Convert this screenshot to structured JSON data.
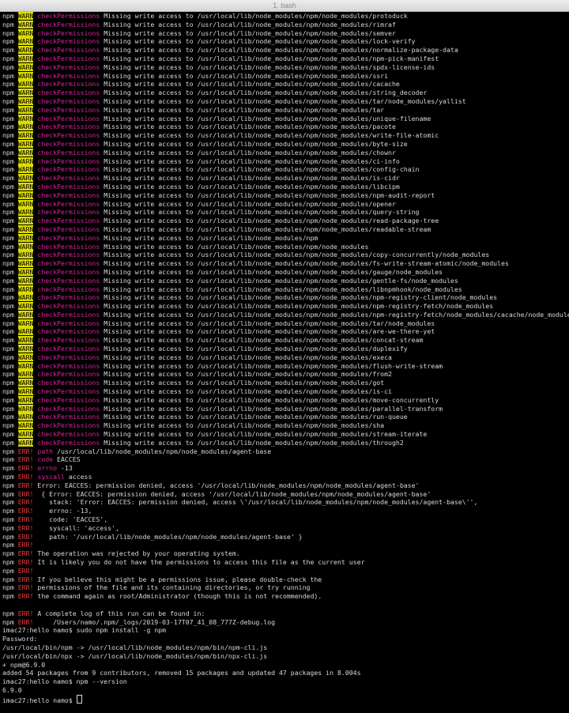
{
  "window": {
    "title": "1. bash"
  },
  "colors": {
    "warn_bg": "#dcdc00",
    "err": "#ee3b3b",
    "keyword": "#d6269b",
    "text": "#d8d8d8",
    "bg": "#000000"
  },
  "lines": [
    {
      "t": "w",
      "c": "checkPermissions",
      "m": "Missing write access to /usr/local/lib/node_modules/npm/node_modules/protoduck"
    },
    {
      "t": "w",
      "c": "checkPermissions",
      "m": "Missing write access to /usr/local/lib/node_modules/npm/node_modules/rimraf"
    },
    {
      "t": "w",
      "c": "checkPermissions",
      "m": "Missing write access to /usr/local/lib/node_modules/npm/node_modules/semver"
    },
    {
      "t": "w",
      "c": "checkPermissions",
      "m": "Missing write access to /usr/local/lib/node_modules/npm/node_modules/lock-verify"
    },
    {
      "t": "w",
      "c": "checkPermissions",
      "m": "Missing write access to /usr/local/lib/node_modules/npm/node_modules/normalize-package-data"
    },
    {
      "t": "w",
      "c": "checkPermissions",
      "m": "Missing write access to /usr/local/lib/node_modules/npm/node_modules/npm-pick-manifest"
    },
    {
      "t": "w",
      "c": "checkPermissions",
      "m": "Missing write access to /usr/local/lib/node_modules/npm/node_modules/spdx-license-ids"
    },
    {
      "t": "w",
      "c": "checkPermissions",
      "m": "Missing write access to /usr/local/lib/node_modules/npm/node_modules/ssri"
    },
    {
      "t": "w",
      "c": "checkPermissions",
      "m": "Missing write access to /usr/local/lib/node_modules/npm/node_modules/cacache"
    },
    {
      "t": "w",
      "c": "checkPermissions",
      "m": "Missing write access to /usr/local/lib/node_modules/npm/node_modules/string_decoder"
    },
    {
      "t": "w",
      "c": "checkPermissions",
      "m": "Missing write access to /usr/local/lib/node_modules/npm/node_modules/tar/node_modules/yallist"
    },
    {
      "t": "w",
      "c": "checkPermissions",
      "m": "Missing write access to /usr/local/lib/node_modules/npm/node_modules/tar"
    },
    {
      "t": "w",
      "c": "checkPermissions",
      "m": "Missing write access to /usr/local/lib/node_modules/npm/node_modules/unique-filename"
    },
    {
      "t": "w",
      "c": "checkPermissions",
      "m": "Missing write access to /usr/local/lib/node_modules/npm/node_modules/pacote"
    },
    {
      "t": "w",
      "c": "checkPermissions",
      "m": "Missing write access to /usr/local/lib/node_modules/npm/node_modules/write-file-atomic"
    },
    {
      "t": "w",
      "c": "checkPermissions",
      "m": "Missing write access to /usr/local/lib/node_modules/npm/node_modules/byte-size"
    },
    {
      "t": "w",
      "c": "checkPermissions",
      "m": "Missing write access to /usr/local/lib/node_modules/npm/node_modules/chownr"
    },
    {
      "t": "w",
      "c": "checkPermissions",
      "m": "Missing write access to /usr/local/lib/node_modules/npm/node_modules/ci-info"
    },
    {
      "t": "w",
      "c": "checkPermissions",
      "m": "Missing write access to /usr/local/lib/node_modules/npm/node_modules/config-chain"
    },
    {
      "t": "w",
      "c": "checkPermissions",
      "m": "Missing write access to /usr/local/lib/node_modules/npm/node_modules/is-cidr"
    },
    {
      "t": "w",
      "c": "checkPermissions",
      "m": "Missing write access to /usr/local/lib/node_modules/npm/node_modules/libcipm"
    },
    {
      "t": "w",
      "c": "checkPermissions",
      "m": "Missing write access to /usr/local/lib/node_modules/npm/node_modules/npm-audit-report"
    },
    {
      "t": "w",
      "c": "checkPermissions",
      "m": "Missing write access to /usr/local/lib/node_modules/npm/node_modules/opener"
    },
    {
      "t": "w",
      "c": "checkPermissions",
      "m": "Missing write access to /usr/local/lib/node_modules/npm/node_modules/query-string"
    },
    {
      "t": "w",
      "c": "checkPermissions",
      "m": "Missing write access to /usr/local/lib/node_modules/npm/node_modules/read-package-tree"
    },
    {
      "t": "w",
      "c": "checkPermissions",
      "m": "Missing write access to /usr/local/lib/node_modules/npm/node_modules/readable-stream"
    },
    {
      "t": "w",
      "c": "checkPermissions",
      "m": "Missing write access to /usr/local/lib/node_modules/npm"
    },
    {
      "t": "w",
      "c": "checkPermissions",
      "m": "Missing write access to /usr/local/lib/node_modules/npm/node_modules"
    },
    {
      "t": "w",
      "c": "checkPermissions",
      "m": "Missing write access to /usr/local/lib/node_modules/npm/node_modules/copy-concurrently/node_modules"
    },
    {
      "t": "w",
      "c": "checkPermissions",
      "m": "Missing write access to /usr/local/lib/node_modules/npm/node_modules/fs-write-stream-atomic/node_modules"
    },
    {
      "t": "w",
      "c": "checkPermissions",
      "m": "Missing write access to /usr/local/lib/node_modules/npm/node_modules/gauge/node_modules"
    },
    {
      "t": "w",
      "c": "checkPermissions",
      "m": "Missing write access to /usr/local/lib/node_modules/npm/node_modules/gentle-fs/node_modules"
    },
    {
      "t": "w",
      "c": "checkPermissions",
      "m": "Missing write access to /usr/local/lib/node_modules/npm/node_modules/libnpmhook/node_modules"
    },
    {
      "t": "w",
      "c": "checkPermissions",
      "m": "Missing write access to /usr/local/lib/node_modules/npm/node_modules/npm-registry-client/node_modules"
    },
    {
      "t": "w",
      "c": "checkPermissions",
      "m": "Missing write access to /usr/local/lib/node_modules/npm/node_modules/npm-registry-fetch/node_modules"
    },
    {
      "t": "w",
      "c": "checkPermissions",
      "m": "Missing write access to /usr/local/lib/node_modules/npm/node_modules/npm-registry-fetch/node_modules/cacache/node_modules"
    },
    {
      "t": "w",
      "c": "checkPermissions",
      "m": "Missing write access to /usr/local/lib/node_modules/npm/node_modules/tar/node_modules"
    },
    {
      "t": "w",
      "c": "checkPermissions",
      "m": "Missing write access to /usr/local/lib/node_modules/npm/node_modules/are-we-there-yet"
    },
    {
      "t": "w",
      "c": "checkPermissions",
      "m": "Missing write access to /usr/local/lib/node_modules/npm/node_modules/concat-stream"
    },
    {
      "t": "w",
      "c": "checkPermissions",
      "m": "Missing write access to /usr/local/lib/node_modules/npm/node_modules/duplexify"
    },
    {
      "t": "w",
      "c": "checkPermissions",
      "m": "Missing write access to /usr/local/lib/node_modules/npm/node_modules/execa"
    },
    {
      "t": "w",
      "c": "checkPermissions",
      "m": "Missing write access to /usr/local/lib/node_modules/npm/node_modules/flush-write-stream"
    },
    {
      "t": "w",
      "c": "checkPermissions",
      "m": "Missing write access to /usr/local/lib/node_modules/npm/node_modules/from2"
    },
    {
      "t": "w",
      "c": "checkPermissions",
      "m": "Missing write access to /usr/local/lib/node_modules/npm/node_modules/got"
    },
    {
      "t": "w",
      "c": "checkPermissions",
      "m": "Missing write access to /usr/local/lib/node_modules/npm/node_modules/is-ci"
    },
    {
      "t": "w",
      "c": "checkPermissions",
      "m": "Missing write access to /usr/local/lib/node_modules/npm/node_modules/move-concurrently"
    },
    {
      "t": "w",
      "c": "checkPermissions",
      "m": "Missing write access to /usr/local/lib/node_modules/npm/node_modules/parallel-transform"
    },
    {
      "t": "w",
      "c": "checkPermissions",
      "m": "Missing write access to /usr/local/lib/node_modules/npm/node_modules/run-queue"
    },
    {
      "t": "w",
      "c": "checkPermissions",
      "m": "Missing write access to /usr/local/lib/node_modules/npm/node_modules/sha"
    },
    {
      "t": "w",
      "c": "checkPermissions",
      "m": "Missing write access to /usr/local/lib/node_modules/npm/node_modules/stream-iterate"
    },
    {
      "t": "w",
      "c": "checkPermissions",
      "m": "Missing write access to /usr/local/lib/node_modules/npm/node_modules/through2"
    },
    {
      "t": "e",
      "c": "path",
      "m": "/usr/local/lib/node_modules/npm/node_modules/agent-base"
    },
    {
      "t": "e",
      "c": "code",
      "m": "EACCES"
    },
    {
      "t": "e",
      "c": "errno",
      "m": "-13"
    },
    {
      "t": "e",
      "c": "syscall",
      "m": "access"
    },
    {
      "t": "e",
      "c": "",
      "m": "Error: EACCES: permission denied, access '/usr/local/lib/node_modules/npm/node_modules/agent-base'"
    },
    {
      "t": "e",
      "c": "",
      "m": " { Error: EACCES: permission denied, access '/usr/local/lib/node_modules/npm/node_modules/agent-base'"
    },
    {
      "t": "e",
      "c": "",
      "m": "   stack: 'Error: EACCES: permission denied, access \\'/usr/local/lib/node_modules/npm/node_modules/agent-base\\'',"
    },
    {
      "t": "e",
      "c": "",
      "m": "   errno: -13,"
    },
    {
      "t": "e",
      "c": "",
      "m": "   code: 'EACCES',"
    },
    {
      "t": "e",
      "c": "",
      "m": "   syscall: 'access',"
    },
    {
      "t": "e",
      "c": "",
      "m": "   path: '/usr/local/lib/node_modules/npm/node_modules/agent-base' }"
    },
    {
      "t": "e",
      "c": "",
      "m": ""
    },
    {
      "t": "e",
      "c": "",
      "m": "The operation was rejected by your operating system."
    },
    {
      "t": "e",
      "c": "",
      "m": "It is likely you do not have the permissions to access this file as the current user"
    },
    {
      "t": "e",
      "c": "",
      "m": ""
    },
    {
      "t": "e",
      "c": "",
      "m": "If you believe this might be a permissions issue, please double-check the"
    },
    {
      "t": "e",
      "c": "",
      "m": "permissions of the file and its containing directories, or try running"
    },
    {
      "t": "e",
      "c": "",
      "m": "the command again as root/Administrator (though this is not recommended)."
    },
    {
      "t": "p",
      "m": ""
    },
    {
      "t": "e",
      "c": "",
      "m": "A complete log of this run can be found in:"
    },
    {
      "t": "e",
      "c": "",
      "m": "    /Users/namo/.npm/_logs/2019-03-17T07_41_08_777Z-debug.log"
    },
    {
      "t": "p",
      "m": "imac27:hello namo$ sudo npm install -g npm"
    },
    {
      "t": "p",
      "m": "Password:"
    },
    {
      "t": "p",
      "m": "/usr/local/bin/npm -> /usr/local/lib/node_modules/npm/bin/npm-cli.js"
    },
    {
      "t": "p",
      "m": "/usr/local/bin/npx -> /usr/local/lib/node_modules/npm/bin/npx-cli.js"
    },
    {
      "t": "p",
      "m": "+ npm@6.9.0"
    },
    {
      "t": "p",
      "m": "added 54 packages from 9 contributors, removed 15 packages and updated 47 packages in 8.004s"
    },
    {
      "t": "p",
      "m": "imac27:hello namo$ npm --version"
    },
    {
      "t": "p",
      "m": "6.9.0"
    },
    {
      "t": "p",
      "m": "imac27:hello namo$ ",
      "cursor": true
    }
  ],
  "labels": {
    "npm": "npm",
    "warn": "WARN",
    "err": "ERR!"
  }
}
